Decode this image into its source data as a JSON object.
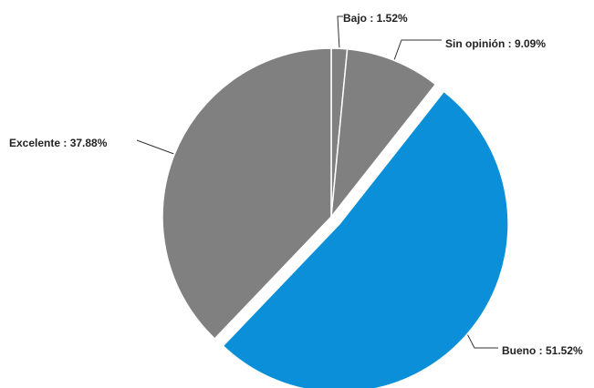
{
  "chart_data": {
    "type": "pie",
    "title": "",
    "separator": " : ",
    "slices": [
      {
        "label": "Bajo",
        "value": 1.52,
        "display": "1.52%",
        "color": "#808080",
        "exploded": false
      },
      {
        "label": "Sin opinión",
        "value": 9.09,
        "display": "9.09%",
        "color": "#808080",
        "exploded": false
      },
      {
        "label": "Bueno",
        "value": 51.52,
        "display": "51.52%",
        "color": "#0a8fd8",
        "exploded": true
      },
      {
        "label": "Excelente",
        "value": 37.88,
        "display": "37.88%",
        "color": "#808080",
        "exploded": false
      }
    ],
    "start": "12 o'clock",
    "direction": "clockwise",
    "legend": "none",
    "label_style": "outside with leader lines"
  }
}
